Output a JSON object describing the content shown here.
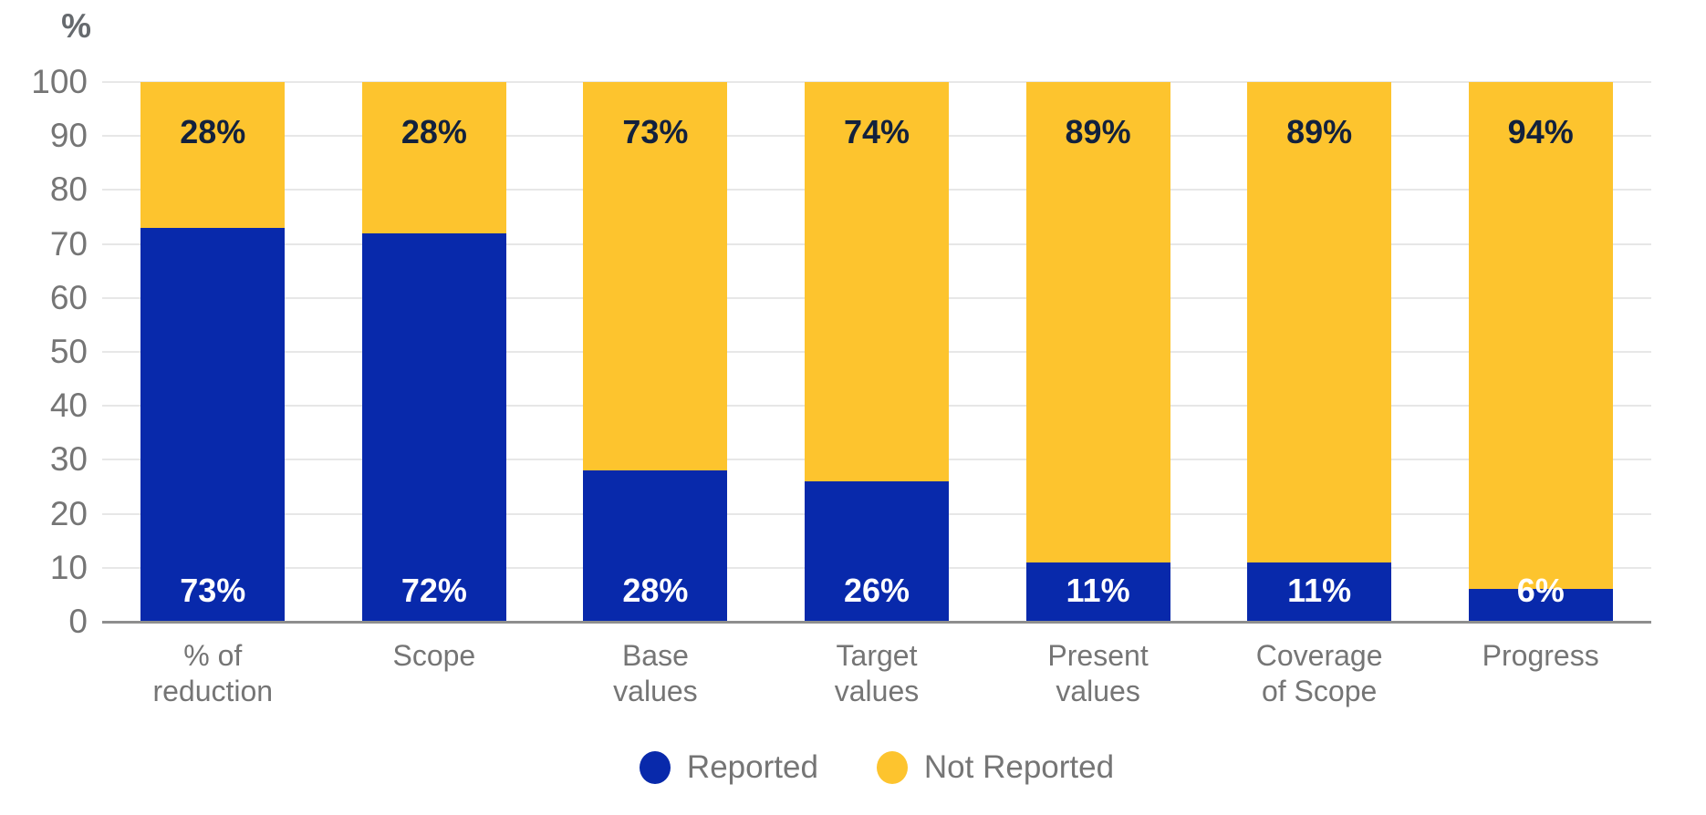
{
  "chart_data": {
    "type": "bar",
    "subtype": "stacked-percentage-column",
    "title": "",
    "y_axis_title": "%",
    "xlabel": "",
    "ylabel": "%",
    "ylim": [
      0,
      100
    ],
    "y_ticks": [
      0,
      10,
      20,
      30,
      40,
      50,
      60,
      70,
      80,
      90,
      100
    ],
    "grid": true,
    "legend_position": "bottom",
    "categories": [
      [
        "% of",
        "reduction"
      ],
      [
        "Scope"
      ],
      [
        "Base",
        "values"
      ],
      [
        "Target",
        "values"
      ],
      [
        "Present",
        "values"
      ],
      [
        "Coverage",
        "of Scope"
      ],
      [
        "Progress"
      ]
    ],
    "series": [
      {
        "name": "Reported",
        "values": [
          73,
          72,
          28,
          26,
          11,
          11,
          6
        ],
        "data_labels": [
          "73%",
          "72%",
          "28%",
          "26%",
          "11%",
          "11%",
          "6%"
        ],
        "color": "#0829AB",
        "label_text_color": "#FFFFFF"
      },
      {
        "name": "Not Reported",
        "values": [
          28,
          28,
          73,
          74,
          89,
          89,
          94
        ],
        "data_labels": [
          "28%",
          "28%",
          "73%",
          "74%",
          "89%",
          "89%",
          "94%"
        ],
        "color": "#FDC42E",
        "label_text_color": "#12213D"
      }
    ]
  },
  "legend": {
    "items": [
      {
        "label": "Reported",
        "color": "#0829AB"
      },
      {
        "label": "Not Reported",
        "color": "#FDC42E"
      }
    ]
  },
  "colors": {
    "reported": "#0829AB",
    "not_reported": "#FDC42E",
    "axis_text": "#757575",
    "gridline": "#E7E7E7",
    "baseline": "#8E8E8E",
    "label_on_yellow": "#12213D",
    "label_on_blue": "#FFFFFF"
  }
}
